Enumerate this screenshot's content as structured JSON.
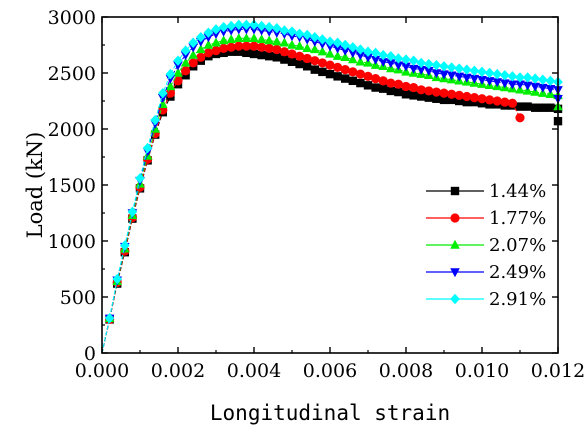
{
  "chart_data": {
    "type": "line",
    "xlabel": "Longitudinal strain",
    "ylabel": "Load (kN)",
    "xlim": [
      0.0,
      0.012
    ],
    "ylim": [
      0,
      3000
    ],
    "xticks": [
      "0.000",
      "0.002",
      "0.004",
      "0.006",
      "0.008",
      "0.010",
      "0.012"
    ],
    "yticks": [
      "0",
      "500",
      "1000",
      "1500",
      "2000",
      "2500",
      "3000"
    ],
    "legend_position": "bottom-right",
    "grid": false,
    "series": [
      {
        "name": "1.44%",
        "color": "#000000",
        "marker": "square",
        "x": [
          0,
          0.0002,
          0.0004,
          0.0006,
          0.0008,
          0.001,
          0.0012,
          0.0014,
          0.0016,
          0.0018,
          0.002,
          0.0022,
          0.0024,
          0.0026,
          0.0028,
          0.003,
          0.0032,
          0.0034,
          0.0036,
          0.0038,
          0.004,
          0.0042,
          0.0044,
          0.0046,
          0.0048,
          0.005,
          0.0052,
          0.0054,
          0.0056,
          0.0058,
          0.006,
          0.0062,
          0.0064,
          0.0066,
          0.0068,
          0.007,
          0.0072,
          0.0074,
          0.0076,
          0.0078,
          0.008,
          0.0082,
          0.0084,
          0.0086,
          0.0088,
          0.009,
          0.0092,
          0.0094,
          0.0096,
          0.0098,
          0.01,
          0.0102,
          0.0104,
          0.0106,
          0.0108,
          0.011,
          0.0112,
          0.0114,
          0.0116,
          0.0118,
          0.012,
          0.012
        ],
        "y": [
          0,
          300,
          620,
          900,
          1200,
          1470,
          1720,
          1950,
          2150,
          2290,
          2400,
          2480,
          2560,
          2610,
          2650,
          2670,
          2680,
          2690,
          2690,
          2680,
          2670,
          2660,
          2650,
          2640,
          2620,
          2600,
          2580,
          2560,
          2530,
          2510,
          2490,
          2470,
          2450,
          2430,
          2410,
          2390,
          2370,
          2360,
          2340,
          2330,
          2310,
          2300,
          2290,
          2280,
          2270,
          2260,
          2260,
          2250,
          2240,
          2240,
          2230,
          2220,
          2220,
          2210,
          2210,
          2200,
          2200,
          2190,
          2190,
          2190,
          2180,
          2070
        ]
      },
      {
        "name": "1.77%",
        "color": "#ff0000",
        "marker": "circle",
        "x": [
          0,
          0.0002,
          0.0004,
          0.0006,
          0.0008,
          0.001,
          0.0012,
          0.0014,
          0.0016,
          0.0018,
          0.002,
          0.0022,
          0.0024,
          0.0026,
          0.0028,
          0.003,
          0.0032,
          0.0034,
          0.0036,
          0.0038,
          0.004,
          0.0042,
          0.0044,
          0.0046,
          0.0048,
          0.005,
          0.0052,
          0.0054,
          0.0056,
          0.0058,
          0.006,
          0.0062,
          0.0064,
          0.0066,
          0.0068,
          0.007,
          0.0072,
          0.0074,
          0.0076,
          0.0078,
          0.008,
          0.0082,
          0.0084,
          0.0086,
          0.0088,
          0.009,
          0.0092,
          0.0094,
          0.0096,
          0.0098,
          0.01,
          0.0102,
          0.0104,
          0.0106,
          0.0108,
          0.011
        ],
        "y": [
          0,
          300,
          630,
          910,
          1210,
          1480,
          1730,
          1960,
          2170,
          2320,
          2430,
          2520,
          2590,
          2640,
          2680,
          2700,
          2720,
          2730,
          2740,
          2740,
          2740,
          2730,
          2720,
          2710,
          2690,
          2670,
          2650,
          2630,
          2610,
          2590,
          2570,
          2550,
          2530,
          2510,
          2490,
          2470,
          2450,
          2430,
          2410,
          2400,
          2380,
          2370,
          2350,
          2340,
          2330,
          2320,
          2310,
          2300,
          2290,
          2280,
          2270,
          2260,
          2250,
          2240,
          2230,
          2100
        ]
      },
      {
        "name": "2.07%",
        "color": "#00ee00",
        "marker": "triangle-up",
        "x": [
          0,
          0.0002,
          0.0004,
          0.0006,
          0.0008,
          0.001,
          0.0012,
          0.0014,
          0.0016,
          0.0018,
          0.002,
          0.0022,
          0.0024,
          0.0026,
          0.0028,
          0.003,
          0.0032,
          0.0034,
          0.0036,
          0.0038,
          0.004,
          0.0042,
          0.0044,
          0.0046,
          0.0048,
          0.005,
          0.0052,
          0.0054,
          0.0056,
          0.0058,
          0.006,
          0.0062,
          0.0064,
          0.0066,
          0.0068,
          0.007,
          0.0072,
          0.0074,
          0.0076,
          0.0078,
          0.008,
          0.0082,
          0.0084,
          0.0086,
          0.0088,
          0.009,
          0.0092,
          0.0094,
          0.0096,
          0.0098,
          0.01,
          0.0102,
          0.0104,
          0.0106,
          0.0108,
          0.011,
          0.0112,
          0.0114,
          0.0116,
          0.0118,
          0.012,
          0.012
        ],
        "y": [
          0,
          310,
          640,
          930,
          1230,
          1510,
          1760,
          2000,
          2220,
          2380,
          2500,
          2590,
          2660,
          2710,
          2750,
          2770,
          2790,
          2800,
          2810,
          2810,
          2810,
          2800,
          2790,
          2780,
          2770,
          2750,
          2740,
          2720,
          2710,
          2690,
          2670,
          2650,
          2640,
          2620,
          2600,
          2590,
          2570,
          2560,
          2540,
          2530,
          2510,
          2500,
          2490,
          2480,
          2460,
          2450,
          2440,
          2430,
          2420,
          2410,
          2400,
          2390,
          2380,
          2370,
          2360,
          2350,
          2340,
          2330,
          2320,
          2310,
          2300,
          2200
        ]
      },
      {
        "name": "2.49%",
        "color": "#0000ff",
        "marker": "triangle-down",
        "x": [
          0,
          0.0002,
          0.0004,
          0.0006,
          0.0008,
          0.001,
          0.0012,
          0.0014,
          0.0016,
          0.0018,
          0.002,
          0.0022,
          0.0024,
          0.0026,
          0.0028,
          0.003,
          0.0032,
          0.0034,
          0.0036,
          0.0038,
          0.004,
          0.0042,
          0.0044,
          0.0046,
          0.0048,
          0.005,
          0.0052,
          0.0054,
          0.0056,
          0.0058,
          0.006,
          0.0062,
          0.0064,
          0.0066,
          0.0068,
          0.007,
          0.0072,
          0.0074,
          0.0076,
          0.0078,
          0.008,
          0.0082,
          0.0084,
          0.0086,
          0.0088,
          0.009,
          0.0092,
          0.0094,
          0.0096,
          0.0098,
          0.01,
          0.0102,
          0.0104,
          0.0106,
          0.0108,
          0.011,
          0.0112,
          0.0114,
          0.0116,
          0.0118,
          0.012,
          0.012
        ],
        "y": [
          0,
          310,
          650,
          950,
          1250,
          1540,
          1800,
          2050,
          2280,
          2450,
          2570,
          2660,
          2730,
          2780,
          2820,
          2850,
          2870,
          2880,
          2890,
          2890,
          2890,
          2880,
          2870,
          2860,
          2850,
          2830,
          2820,
          2800,
          2780,
          2760,
          2740,
          2720,
          2700,
          2680,
          2660,
          2640,
          2620,
          2600,
          2590,
          2570,
          2560,
          2540,
          2530,
          2520,
          2500,
          2490,
          2480,
          2470,
          2460,
          2450,
          2440,
          2430,
          2420,
          2410,
          2400,
          2400,
          2390,
          2380,
          2370,
          2360,
          2350,
          2270
        ]
      },
      {
        "name": "2.91%",
        "color": "#00ffff",
        "marker": "diamond",
        "x": [
          0,
          0.0002,
          0.0004,
          0.0006,
          0.0008,
          0.001,
          0.0012,
          0.0014,
          0.0016,
          0.0018,
          0.002,
          0.0022,
          0.0024,
          0.0026,
          0.0028,
          0.003,
          0.0032,
          0.0034,
          0.0036,
          0.0038,
          0.004,
          0.0042,
          0.0044,
          0.0046,
          0.0048,
          0.005,
          0.0052,
          0.0054,
          0.0056,
          0.0058,
          0.006,
          0.0062,
          0.0064,
          0.0066,
          0.0068,
          0.007,
          0.0072,
          0.0074,
          0.0076,
          0.0078,
          0.008,
          0.0082,
          0.0084,
          0.0086,
          0.0088,
          0.009,
          0.0092,
          0.0094,
          0.0096,
          0.0098,
          0.01,
          0.0102,
          0.0104,
          0.0106,
          0.0108,
          0.011,
          0.0112,
          0.0114,
          0.0116,
          0.0118,
          0.012
        ],
        "y": [
          0,
          310,
          660,
          960,
          1260,
          1560,
          1830,
          2080,
          2320,
          2490,
          2610,
          2700,
          2770,
          2820,
          2860,
          2890,
          2910,
          2920,
          2930,
          2930,
          2930,
          2920,
          2910,
          2900,
          2880,
          2870,
          2850,
          2840,
          2820,
          2800,
          2780,
          2770,
          2750,
          2730,
          2710,
          2690,
          2680,
          2660,
          2650,
          2630,
          2620,
          2610,
          2590,
          2580,
          2570,
          2560,
          2550,
          2540,
          2530,
          2520,
          2510,
          2500,
          2490,
          2480,
          2470,
          2460,
          2460,
          2450,
          2440,
          2430,
          2420
        ]
      }
    ]
  }
}
